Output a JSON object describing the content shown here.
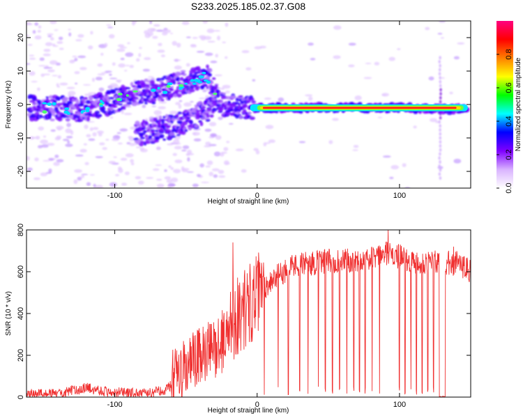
{
  "title": "S233.2025.185.02.37.G08",
  "chart_data": [
    {
      "type": "heatmap",
      "xlabel": "Height of straight line (km)",
      "ylabel": "Frequency (Hz)",
      "xlim": [
        -162,
        150
      ],
      "ylim": [
        -25,
        25
      ],
      "xticks": [
        -100,
        0,
        100
      ],
      "yticks": [
        -20,
        -10,
        0,
        10,
        20
      ],
      "grid": false,
      "colorbar": {
        "label": "Normalized spectral amplitude",
        "range": [
          0,
          1
        ],
        "ticks": [
          "0.0",
          "0.2",
          "0.4",
          "0.6",
          "0.8"
        ],
        "colors": [
          "#ffffff",
          "#d9b3ff",
          "#7f00ff",
          "#0000ff",
          "#00ffff",
          "#00ff00",
          "#ffff00",
          "#ff7f00",
          "#ff0000",
          "#ff0080"
        ]
      },
      "ridge": [
        {
          "x": -160,
          "f": -1.0
        },
        {
          "x": -140,
          "f": -1.2
        },
        {
          "x": -120,
          "f": -1.5
        },
        {
          "x": -105,
          "f": 0.5
        },
        {
          "x": -95,
          "f": 2.0
        },
        {
          "x": -85,
          "f": 3.5
        },
        {
          "x": -70,
          "f": 4.0
        },
        {
          "x": -55,
          "f": 6.0
        },
        {
          "x": -45,
          "f": 7.5
        },
        {
          "x": -35,
          "f": 8.5
        },
        {
          "x": -30,
          "f": 4.0
        },
        {
          "x": -25,
          "f": 0.5
        },
        {
          "x": -15,
          "f": -1.0
        },
        {
          "x": 0,
          "f": -1.0
        },
        {
          "x": 50,
          "f": -1.0
        },
        {
          "x": 100,
          "f": -1.0
        },
        {
          "x": 148,
          "f": -1.5
        }
      ],
      "lower_branch": [
        {
          "x": -85,
          "f": -9.0
        },
        {
          "x": -70,
          "f": -7.5
        },
        {
          "x": -55,
          "f": -6.0
        },
        {
          "x": -45,
          "f": -4.0
        },
        {
          "x": -35,
          "f": -1.5
        },
        {
          "x": -30,
          "f": 1.0
        }
      ]
    },
    {
      "type": "line",
      "xlabel": "Height of straight line (km)",
      "ylabel": "SNR (10 * v/v)",
      "xlim": [
        -162,
        150
      ],
      "ylim": [
        0,
        800
      ],
      "xticks": [
        -100,
        0,
        100
      ],
      "yticks": [
        0,
        200,
        400,
        600,
        800
      ],
      "grid": false,
      "color": "#f03030",
      "envelope": [
        {
          "x": -162,
          "snr": 30
        },
        {
          "x": -140,
          "snr": 30
        },
        {
          "x": -120,
          "snr": 60
        },
        {
          "x": -105,
          "snr": 40
        },
        {
          "x": -80,
          "snr": 30
        },
        {
          "x": -65,
          "snr": 50
        },
        {
          "x": -55,
          "snr": 100
        },
        {
          "x": -45,
          "snr": 170
        },
        {
          "x": -35,
          "snr": 210
        },
        {
          "x": -25,
          "snr": 260
        },
        {
          "x": -15,
          "snr": 380
        },
        {
          "x": -5,
          "snr": 450
        },
        {
          "x": 10,
          "snr": 560
        },
        {
          "x": 25,
          "snr": 630
        },
        {
          "x": 50,
          "snr": 650
        },
        {
          "x": 80,
          "snr": 660
        },
        {
          "x": 92,
          "snr": 690
        },
        {
          "x": 110,
          "snr": 650
        },
        {
          "x": 130,
          "snr": 640
        },
        {
          "x": 140,
          "snr": 640
        },
        {
          "x": 150,
          "snr": 600
        }
      ],
      "peaks": [
        {
          "x": -17,
          "snr": 740
        },
        {
          "x": 92,
          "snr": 800
        },
        {
          "x": 138,
          "snr": 720
        }
      ],
      "dropouts": [
        5,
        15,
        22,
        30,
        36,
        43,
        48,
        53,
        58,
        63,
        68,
        72,
        76,
        81,
        86,
        95,
        100,
        104,
        108,
        112,
        116,
        120,
        124
      ],
      "notch": {
        "x_start": 128,
        "x_end": 132,
        "snr": 0
      }
    }
  ]
}
